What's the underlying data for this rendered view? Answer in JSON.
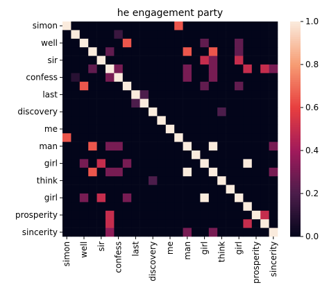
{
  "chart_data": {
    "type": "heatmap",
    "title": "he engagement party",
    "categories": [
      "simon",
      null,
      "well",
      null,
      "sir",
      null,
      "confess",
      null,
      "last",
      null,
      "discovery",
      null,
      "me",
      null,
      "man",
      null,
      "girl",
      null,
      "think",
      null,
      "girl",
      null,
      "prosperity",
      null,
      "sincerity"
    ],
    "values": [
      [
        1,
        0,
        0,
        0,
        0,
        0,
        0,
        0,
        0,
        0,
        0,
        0,
        0,
        0.65,
        0,
        0,
        0,
        0,
        0,
        0,
        0,
        0,
        0,
        0,
        0
      ],
      [
        0,
        1,
        0,
        0,
        0,
        0,
        0.15,
        0,
        0,
        0,
        0,
        0,
        0,
        0,
        0,
        0,
        0,
        0,
        0,
        0,
        0,
        0,
        0,
        0,
        0
      ],
      [
        0,
        0,
        1,
        0,
        0,
        0,
        0,
        0.65,
        0,
        0,
        0,
        0,
        0,
        0,
        0,
        0,
        0.25,
        0,
        0,
        0,
        0.25,
        0,
        0,
        0,
        0
      ],
      [
        0,
        0,
        0,
        1,
        0,
        0.25,
        0,
        0,
        0,
        0,
        0,
        0,
        0,
        0,
        0.65,
        0,
        0,
        0.65,
        0,
        0,
        0.25,
        0,
        0,
        0,
        0
      ],
      [
        0,
        0,
        0,
        0,
        1,
        0,
        0,
        0,
        0,
        0,
        0,
        0,
        0,
        0,
        0,
        0,
        0.5,
        0.3,
        0,
        0,
        0.5,
        0,
        0,
        0,
        0
      ],
      [
        0,
        0,
        0,
        0.25,
        0,
        1,
        0.3,
        0,
        0,
        0,
        0,
        0,
        0,
        0,
        0.3,
        0,
        0,
        0.3,
        0,
        0,
        0,
        0.5,
        0,
        0.5,
        0.3
      ],
      [
        0,
        0.1,
        0,
        0,
        0,
        0.3,
        1,
        0,
        0,
        0,
        0,
        0,
        0,
        0,
        0.3,
        0,
        0,
        0.3,
        0,
        0,
        0,
        0,
        0,
        0,
        0
      ],
      [
        0,
        0,
        0.65,
        0,
        0,
        0,
        0,
        1,
        0,
        0,
        0,
        0,
        0,
        0,
        0,
        0,
        0.25,
        0,
        0,
        0,
        0.25,
        0,
        0,
        0,
        0
      ],
      [
        0,
        0,
        0,
        0,
        0,
        0,
        0,
        0,
        1,
        0.2,
        0,
        0,
        0,
        0,
        0,
        0,
        0,
        0,
        0,
        0,
        0,
        0,
        0,
        0,
        0
      ],
      [
        0,
        0,
        0,
        0,
        0,
        0,
        0,
        0,
        0.2,
        1,
        0,
        0,
        0,
        0,
        0,
        0,
        0,
        0,
        0,
        0,
        0,
        0,
        0,
        0,
        0
      ],
      [
        0,
        0,
        0,
        0,
        0,
        0,
        0,
        0,
        0,
        0,
        1,
        0,
        0,
        0,
        0,
        0,
        0,
        0,
        0.2,
        0,
        0,
        0,
        0,
        0,
        0
      ],
      [
        0,
        0,
        0,
        0,
        0,
        0,
        0,
        0,
        0,
        0,
        0,
        1,
        0,
        0,
        0,
        0,
        0,
        0,
        0,
        0,
        0,
        0,
        0,
        0,
        0
      ],
      [
        0,
        0,
        0,
        0,
        0,
        0,
        0,
        0,
        0,
        0,
        0,
        0,
        1,
        0,
        0,
        0,
        0,
        0,
        0,
        0,
        0,
        0,
        0,
        0,
        0
      ],
      [
        0.65,
        0,
        0,
        0,
        0,
        0,
        0,
        0,
        0,
        0,
        0,
        0,
        0,
        1,
        0,
        0,
        0,
        0,
        0,
        0,
        0,
        0,
        0,
        0,
        0
      ],
      [
        0,
        0,
        0,
        0.65,
        0,
        0.3,
        0.3,
        0,
        0,
        0,
        0,
        0,
        0,
        0,
        1,
        0,
        0,
        1,
        0,
        0,
        0,
        0,
        0,
        0,
        0.3
      ],
      [
        0,
        0,
        0,
        0,
        0,
        0,
        0,
        0,
        0,
        0,
        0,
        0,
        0,
        0,
        0,
        1,
        0,
        0,
        0,
        0,
        0,
        0,
        0,
        0,
        0
      ],
      [
        0,
        0,
        0.3,
        0,
        0.5,
        0,
        0,
        0.3,
        0,
        0,
        0,
        0,
        0,
        0,
        0,
        0,
        1,
        0,
        0,
        0,
        0,
        1,
        0,
        0,
        0
      ],
      [
        0,
        0,
        0,
        0.65,
        0,
        0.3,
        0.3,
        0,
        0,
        0,
        0,
        0,
        0,
        0,
        1,
        0,
        0,
        1,
        0,
        0,
        0,
        0,
        0,
        0,
        0.3
      ],
      [
        0,
        0,
        0,
        0,
        0,
        0,
        0,
        0,
        0,
        0,
        0.2,
        0,
        0,
        0,
        0,
        0,
        0,
        0,
        1,
        0,
        0,
        0,
        0,
        0,
        0
      ],
      [
        0,
        0,
        0,
        0,
        0,
        0,
        0,
        0,
        0,
        0,
        0,
        0,
        0,
        0,
        0,
        0,
        0,
        0,
        0,
        1,
        0,
        0,
        0,
        0,
        0
      ],
      [
        0,
        0,
        0.3,
        0,
        0.5,
        0,
        0,
        0.3,
        0,
        0,
        0,
        0,
        0,
        0,
        0,
        0,
        1,
        0,
        0,
        0,
        1,
        0,
        0,
        0,
        0
      ],
      [
        0,
        0,
        0,
        0,
        0,
        0,
        0,
        0,
        0,
        0,
        0,
        0,
        0,
        0,
        0,
        0,
        0,
        0,
        0,
        0,
        0,
        1,
        0,
        0,
        0
      ],
      [
        0,
        0,
        0,
        0,
        0,
        0.5,
        0,
        0,
        0,
        0,
        0,
        0,
        0,
        0,
        0,
        0,
        0,
        0,
        0,
        0,
        0,
        0,
        1,
        0.5,
        0
      ],
      [
        0,
        0,
        0,
        0,
        0,
        0.5,
        0,
        0,
        0,
        0,
        0,
        0,
        0,
        0,
        0,
        0,
        0,
        0,
        0,
        0,
        0,
        0.5,
        0,
        1,
        0
      ],
      [
        0,
        0,
        0,
        0,
        0,
        0.35,
        0,
        0,
        0,
        0,
        0,
        0,
        0,
        0,
        0.3,
        0,
        0,
        0.3,
        0,
        0,
        0,
        0,
        0,
        0,
        1
      ]
    ],
    "colormap": [
      "#03051a",
      "#4c1d4b",
      "#a11a5b",
      "#e83f3f",
      "#f69c73",
      "#faebdd"
    ],
    "clim": [
      0,
      1
    ],
    "cticks": [
      {
        "value": 0,
        "label": "0.0"
      },
      {
        "value": 0.2,
        "label": "0.2"
      },
      {
        "value": 0.4,
        "label": "0.4"
      },
      {
        "value": 0.6,
        "label": "0.6"
      },
      {
        "value": 0.8,
        "label": "0.8"
      },
      {
        "value": 1,
        "label": "1.0"
      }
    ]
  }
}
